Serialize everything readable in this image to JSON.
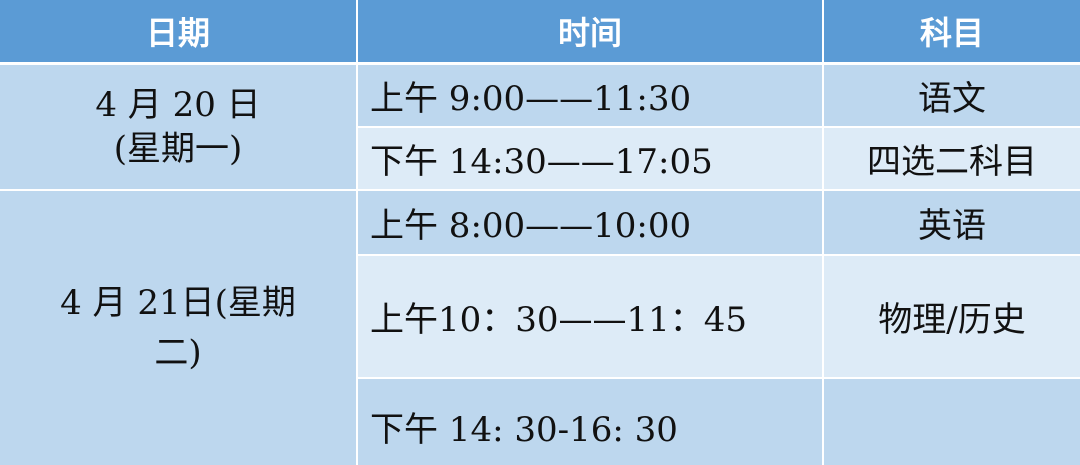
{
  "headers": [
    "日期",
    "时间",
    "科目"
  ],
  "dates": [
    {
      "line1": "4 月 20 日",
      "line2": "(星期一)"
    },
    {
      "line1": "4 月 21日(星期",
      "line2": "二)"
    }
  ],
  "rows": [
    {
      "time": "上午 9:00——11:30",
      "subject": "语文"
    },
    {
      "time": "下午 14:30——17:05",
      "subject": "四选二科目"
    },
    {
      "time": "上午 8:00——10:00",
      "subject": "英语"
    },
    {
      "time": "上午10：30——11：45",
      "subject": "物理/历史"
    },
    {
      "time": "下午 14: 30-16: 30",
      "subject": ""
    }
  ],
  "colors": {
    "header": "#5b9bd5",
    "dark": "#bdd7ee",
    "light": "#ddebf7"
  }
}
